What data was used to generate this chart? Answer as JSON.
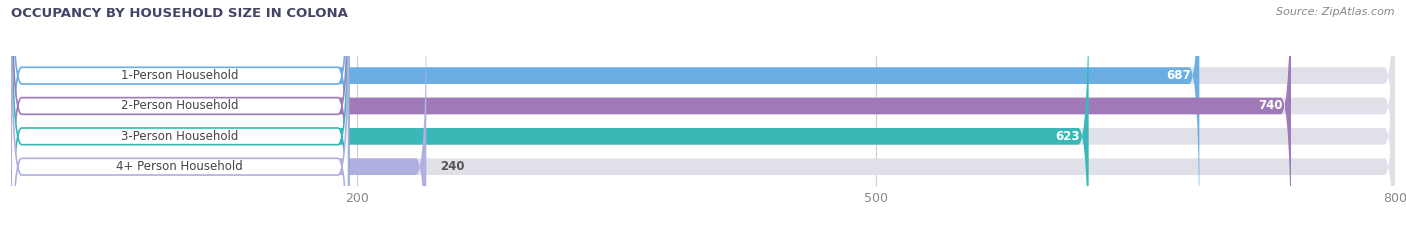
{
  "title": "OCCUPANCY BY HOUSEHOLD SIZE IN COLONA",
  "source": "Source: ZipAtlas.com",
  "categories": [
    "1-Person Household",
    "2-Person Household",
    "3-Person Household",
    "4+ Person Household"
  ],
  "values": [
    687,
    740,
    623,
    240
  ],
  "colors": [
    "#6aaee3",
    "#a07ab8",
    "#3ab8b8",
    "#b0b0e0"
  ],
  "bar_bg_color": "#e0e0e8",
  "label_bg_color": "#ffffff",
  "label_text_color": "#444444",
  "value_inside_color": "#ffffff",
  "value_outside_color": "#555555",
  "xlim": [
    0,
    800
  ],
  "xticks": [
    200,
    500,
    800
  ],
  "value_inside": [
    true,
    true,
    true,
    false
  ],
  "figsize": [
    14.06,
    2.33
  ],
  "dpi": 100,
  "bg_color": "#ffffff",
  "title_color": "#444466",
  "source_color": "#888888"
}
